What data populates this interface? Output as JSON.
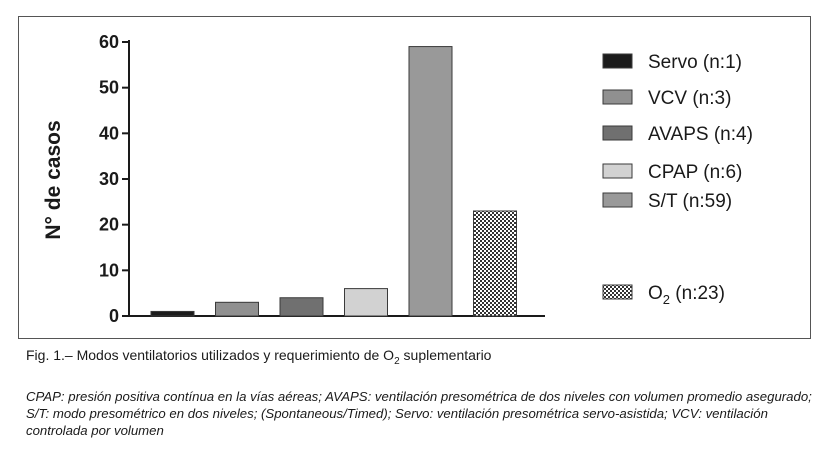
{
  "chart_data": {
    "type": "bar",
    "ylabel": "N° de casos",
    "ylim": [
      0,
      60
    ],
    "yticks": [
      "0",
      "10",
      "20",
      "30",
      "40",
      "50",
      "60"
    ],
    "grid": false,
    "legend_position": "right",
    "series": [
      {
        "name": "Servo (n:1)",
        "value": 1,
        "color": "#1c1c1c"
      },
      {
        "name": "VCV (n:3)",
        "value": 3,
        "color": "#909090"
      },
      {
        "name": "AVAPS (n:4)",
        "value": 4,
        "color": "#707070"
      },
      {
        "name": "CPAP (n:6)",
        "value": 6,
        "color": "#d2d2d2"
      },
      {
        "name": "S/T (n:59)",
        "value": 59,
        "color": "#999999"
      },
      {
        "name": "O2 (n:23)",
        "value": 23,
        "color": "#bdbdbd",
        "pattern": "checker"
      }
    ],
    "legend": [
      {
        "prefix": "Servo (n:1)",
        "sub": "",
        "suffix": ""
      },
      {
        "prefix": "VCV (n:3)",
        "sub": "",
        "suffix": ""
      },
      {
        "prefix": "AVAPS (n:4)",
        "sub": "",
        "suffix": ""
      },
      {
        "prefix": "CPAP (n:6)",
        "sub": "",
        "suffix": ""
      },
      {
        "prefix": "S/T (n:59)",
        "sub": "",
        "suffix": ""
      },
      {
        "prefix": "O",
        "sub": "2",
        "suffix": " (n:23)"
      }
    ]
  },
  "caption": {
    "prefix": "Fig. 1.– Modos ventilatorios utilizados y requerimiento de O",
    "sub": "2",
    "suffix": " suplementario"
  },
  "note": "CPAP: presión positiva contínua en la vías aéreas; AVAPS: ventilación presométrica de dos niveles con volumen promedio asegurado; S/T: modo presométrico en dos niveles; (Spontaneous/Timed); Servo: ventilación presométrica servo-asistida; VCV: ventilación controlada por volumen"
}
